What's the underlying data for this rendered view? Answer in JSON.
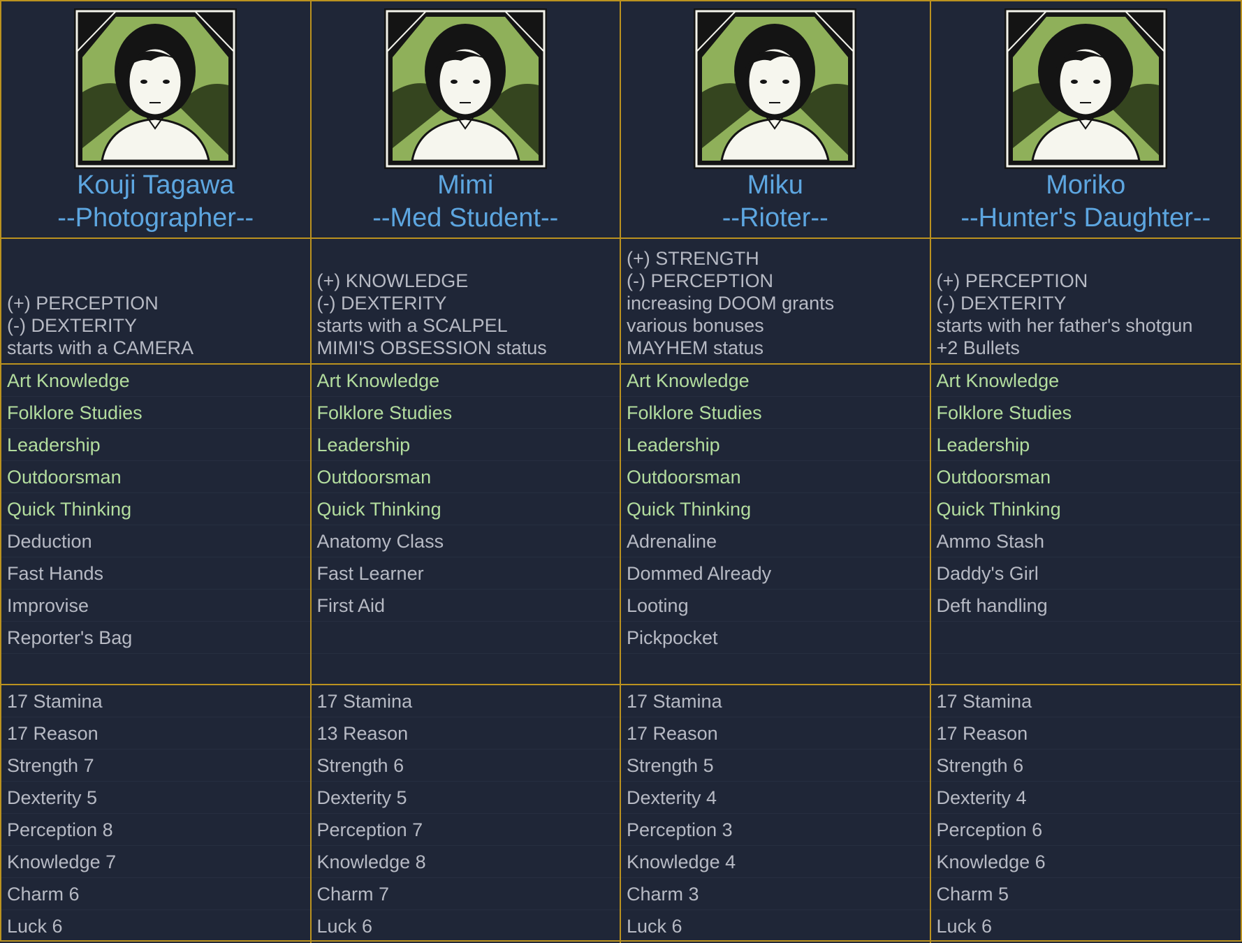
{
  "colors": {
    "background": "#1f2637",
    "border": "#bb921f",
    "name": "#5da6e0",
    "text": "#b7bac4",
    "skill_highlight": "#b3dd9e"
  },
  "characters": [
    {
      "name": "Kouji Tagawa",
      "role": "--Photographer--",
      "portrait": "kouji-portrait",
      "traits": [
        "(+) PERCEPTION",
        "(-) DEXTERITY",
        "starts with a CAMERA"
      ],
      "shared_skills": [
        "Art Knowledge",
        "Folklore Studies",
        "Leadership",
        "Outdoorsman",
        "Quick Thinking"
      ],
      "unique_skills": [
        "Deduction",
        "Fast Hands",
        "Improvise",
        "Reporter's Bag"
      ],
      "stats": [
        "17 Stamina",
        "17 Reason",
        "Strength 7",
        "Dexterity 5",
        "Perception 8",
        "Knowledge 7",
        "Charm 6",
        "Luck 6"
      ]
    },
    {
      "name": "Mimi",
      "role": "--Med Student--",
      "portrait": "mimi-portrait",
      "traits": [
        "(+) KNOWLEDGE",
        "(-) DEXTERITY",
        "starts with a SCALPEL",
        "MIMI'S OBSESSION status"
      ],
      "shared_skills": [
        "Art Knowledge",
        "Folklore Studies",
        "Leadership",
        "Outdoorsman",
        "Quick Thinking"
      ],
      "unique_skills": [
        "Anatomy Class",
        "Fast Learner",
        "First Aid"
      ],
      "stats": [
        "17 Stamina",
        "13 Reason",
        "Strength 6",
        "Dexterity 5",
        "Perception 7",
        "Knowledge 8",
        "Charm 7",
        "Luck 6"
      ]
    },
    {
      "name": "Miku",
      "role": "--Rioter--",
      "portrait": "miku-portrait",
      "traits": [
        "(+) STRENGTH",
        "(-) PERCEPTION",
        "increasing DOOM grants",
        "various bonuses",
        "MAYHEM status"
      ],
      "shared_skills": [
        "Art Knowledge",
        "Folklore Studies",
        "Leadership",
        "Outdoorsman",
        "Quick Thinking"
      ],
      "unique_skills": [
        "Adrenaline",
        "Dommed Already",
        "Looting",
        "Pickpocket"
      ],
      "stats": [
        "17 Stamina",
        "17 Reason",
        "Strength 5",
        "Dexterity 4",
        "Perception 3",
        "Knowledge 4",
        "Charm 3",
        "Luck 6"
      ]
    },
    {
      "name": "Moriko",
      "role": "--Hunter's Daughter--",
      "portrait": "moriko-portrait",
      "traits": [
        "(+) PERCEPTION",
        "(-) DEXTERITY",
        "starts with her father's shotgun",
        "+2 Bullets"
      ],
      "shared_skills": [
        "Art Knowledge",
        "Folklore Studies",
        "Leadership",
        "Outdoorsman",
        "Quick Thinking"
      ],
      "unique_skills": [
        "Ammo Stash",
        "Daddy's Girl",
        "Deft handling"
      ],
      "stats": [
        "17 Stamina",
        "17 Reason",
        "Strength 6",
        "Dexterity 4",
        "Perception 6",
        "Knowledge 6",
        "Charm 5",
        "Luck 6"
      ]
    }
  ]
}
